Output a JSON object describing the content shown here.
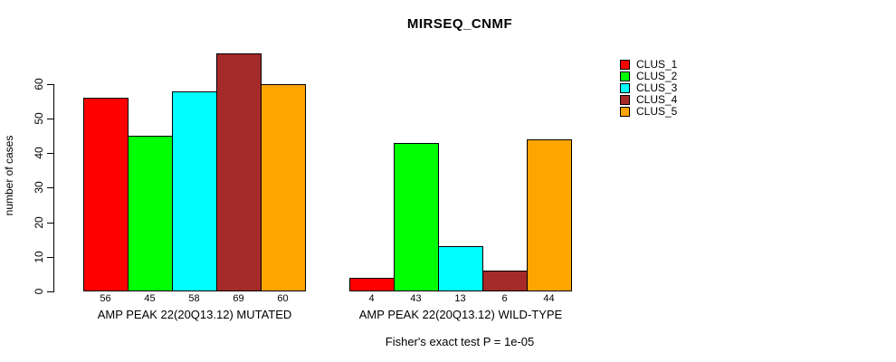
{
  "chart_data": {
    "type": "bar",
    "title": "MIRSEQ_CNMF",
    "ylabel": "number of cases",
    "xlabel": "",
    "ylim": [
      0,
      69
    ],
    "yticks": [
      0,
      10,
      20,
      30,
      40,
      50,
      60
    ],
    "grid": false,
    "legend_position": "top-right",
    "series_names": [
      "CLUS_1",
      "CLUS_2",
      "CLUS_3",
      "CLUS_4",
      "CLUS_5"
    ],
    "colors": [
      "#ff0000",
      "#00ff00",
      "#00ffff",
      "#a52a2a",
      "#ffa500"
    ],
    "groups": [
      {
        "label": "AMP PEAK 22(20Q13.12) MUTATED",
        "values": [
          56,
          45,
          58,
          69,
          60
        ]
      },
      {
        "label": "AMP PEAK 22(20Q13.12) WILD-TYPE",
        "values": [
          4,
          43,
          13,
          6,
          44
        ]
      }
    ],
    "bar_value_labels_shown": true,
    "footnote": "Fisher's exact test P = 1e-05",
    "axis_color": "#000000",
    "background_color": "#ffffff"
  }
}
